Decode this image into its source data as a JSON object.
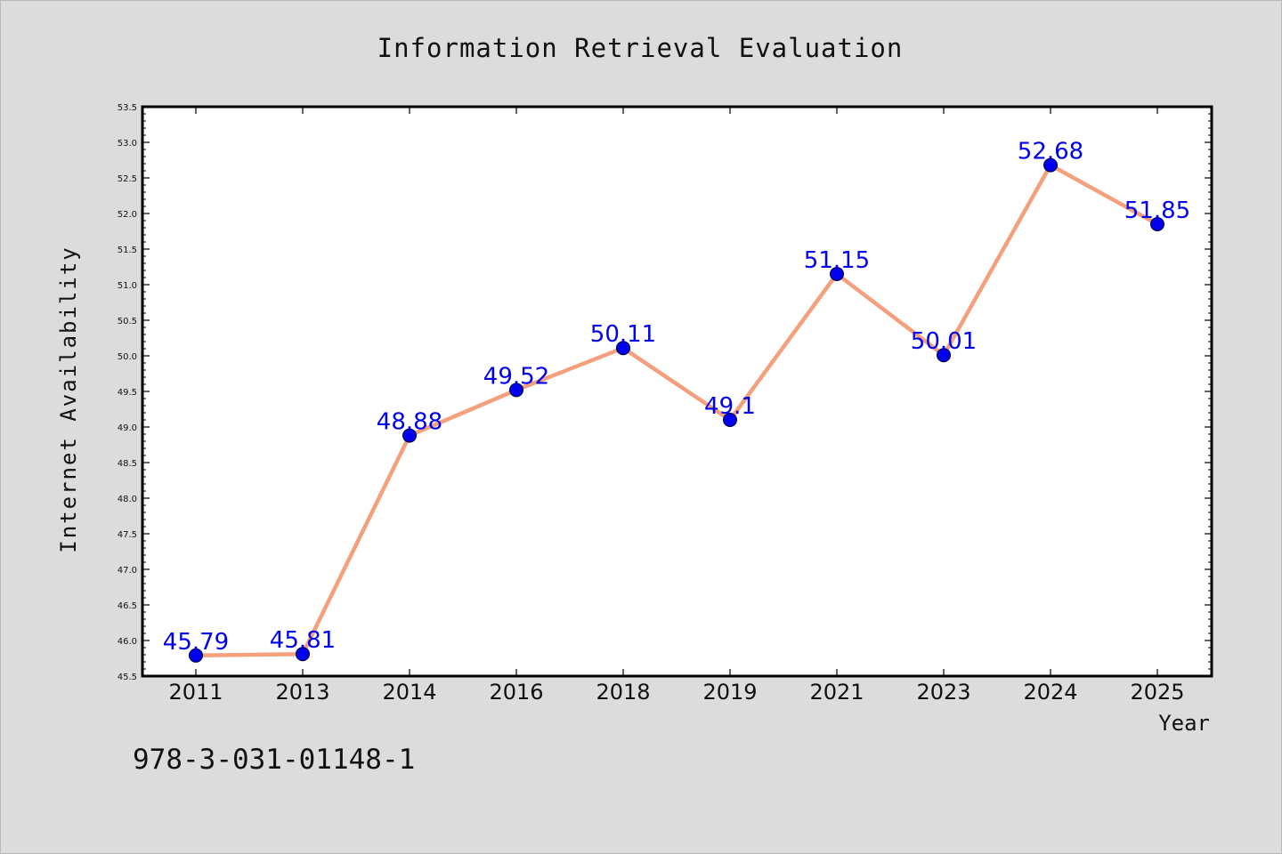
{
  "chart_data": {
    "type": "line",
    "title": "Information Retrieval Evaluation",
    "xlabel": "Year",
    "ylabel": "Internet Availability",
    "categories": [
      "2011",
      "2013",
      "2014",
      "2016",
      "2018",
      "2019",
      "2021",
      "2023",
      "2024",
      "2025"
    ],
    "values": [
      45.79,
      45.81,
      48.88,
      49.52,
      50.11,
      49.1,
      51.15,
      50.01,
      52.68,
      51.85
    ],
    "data_labels": [
      "45.79",
      "45.81",
      "48.88",
      "49.52",
      "50.11",
      "49.1",
      "51.15",
      "50.01",
      "52.68",
      "51.85"
    ],
    "ylim": [
      45.5,
      53.5
    ],
    "yticks": [
      "45.5",
      "46.0",
      "46.5",
      "47.0",
      "47.5",
      "48.0",
      "48.5",
      "49.0",
      "49.5",
      "50.0",
      "50.5",
      "51.0",
      "51.5",
      "52.0",
      "52.5",
      "53.0",
      "53.5"
    ],
    "grid": false,
    "legend": "none",
    "colors": {
      "line": "#f4a07c",
      "marker": "#0000ee",
      "data_label": "#0000ee",
      "background": "#dcdcdc",
      "plot_area": "#ffffff"
    }
  },
  "footnote": "978-3-031-01148-1"
}
